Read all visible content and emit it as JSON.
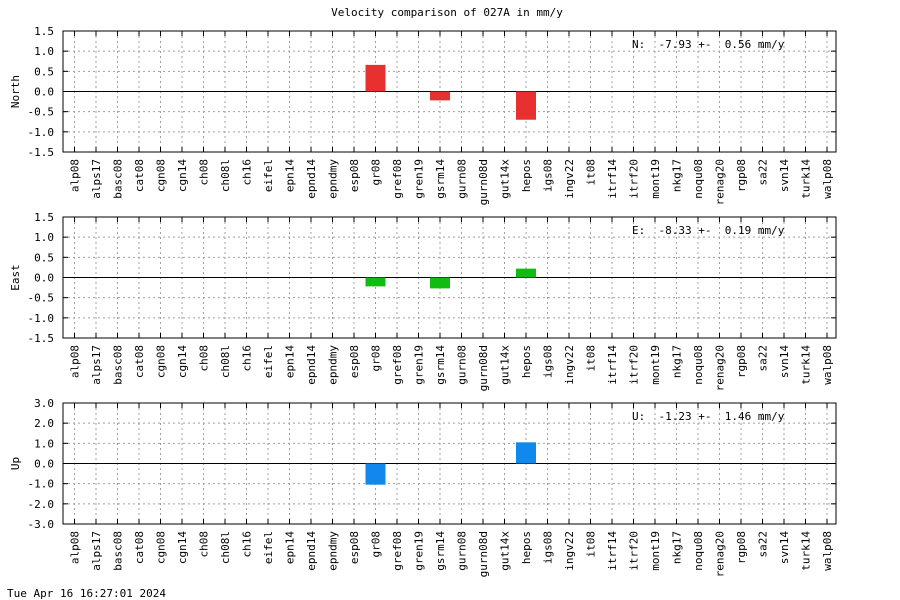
{
  "title": "Velocity comparison of 027A in mm/y",
  "timestamp": "Tue Apr 16 16:27:01 2024",
  "chart_data": {
    "type": "bar",
    "categories": [
      "alp08",
      "alps17",
      "basc08",
      "cat08",
      "cgn08",
      "cgn14",
      "ch08",
      "ch08l",
      "ch16",
      "eifel",
      "epn14",
      "epnd14",
      "epndmy",
      "esp08",
      "gr08",
      "gref08",
      "gren19",
      "gsrm14",
      "gurn08",
      "gurn08d",
      "gut14x",
      "hepos",
      "igs08",
      "ingv22",
      "it08",
      "itrf14",
      "itrf20",
      "mont19",
      "nkg17",
      "noqu08",
      "renag20",
      "rgp08",
      "sa22",
      "svn14",
      "turk14",
      "walp08"
    ],
    "panels": [
      {
        "ylabel": "North",
        "ylim": [
          -1.5,
          1.5
        ],
        "yticks": [
          "1.5",
          "1.0",
          "0.5",
          "0.0",
          "-0.5",
          "-1.0",
          "-1.5"
        ],
        "annotation": "N:  -7.93 +-  0.56 mm/y",
        "color": "#e83030",
        "values": [
          null,
          null,
          null,
          null,
          null,
          null,
          null,
          null,
          null,
          null,
          null,
          null,
          null,
          null,
          0.66,
          null,
          null,
          -0.22,
          null,
          null,
          null,
          -0.7,
          null,
          null,
          null,
          null,
          null,
          null,
          null,
          null,
          null,
          null,
          null,
          null,
          null,
          null
        ]
      },
      {
        "ylabel": "East",
        "ylim": [
          -1.5,
          1.5
        ],
        "yticks": [
          "1.5",
          "1.0",
          "0.5",
          "0.0",
          "-0.5",
          "-1.0",
          "-1.5"
        ],
        "annotation": "E:  -8.33 +-  0.19 mm/y",
        "color": "#11bb11",
        "values": [
          null,
          null,
          null,
          null,
          null,
          null,
          null,
          null,
          null,
          null,
          null,
          null,
          null,
          null,
          -0.22,
          null,
          null,
          -0.27,
          null,
          null,
          null,
          0.22,
          null,
          null,
          null,
          null,
          null,
          null,
          null,
          null,
          null,
          null,
          null,
          null,
          null,
          null
        ]
      },
      {
        "ylabel": "Up",
        "ylim": [
          -3.0,
          3.0
        ],
        "yticks": [
          "3.0",
          "2.0",
          "1.0",
          "0.0",
          "-1.0",
          "-2.0",
          "-3.0"
        ],
        "annotation": "U:  -1.23 +-  1.46 mm/y",
        "color": "#1188ee",
        "values": [
          null,
          null,
          null,
          null,
          null,
          null,
          null,
          null,
          null,
          null,
          null,
          null,
          null,
          null,
          -1.05,
          null,
          null,
          null,
          null,
          null,
          null,
          1.05,
          null,
          null,
          null,
          null,
          null,
          null,
          null,
          null,
          null,
          null,
          null,
          null,
          null,
          null
        ]
      }
    ],
    "grid": true
  }
}
